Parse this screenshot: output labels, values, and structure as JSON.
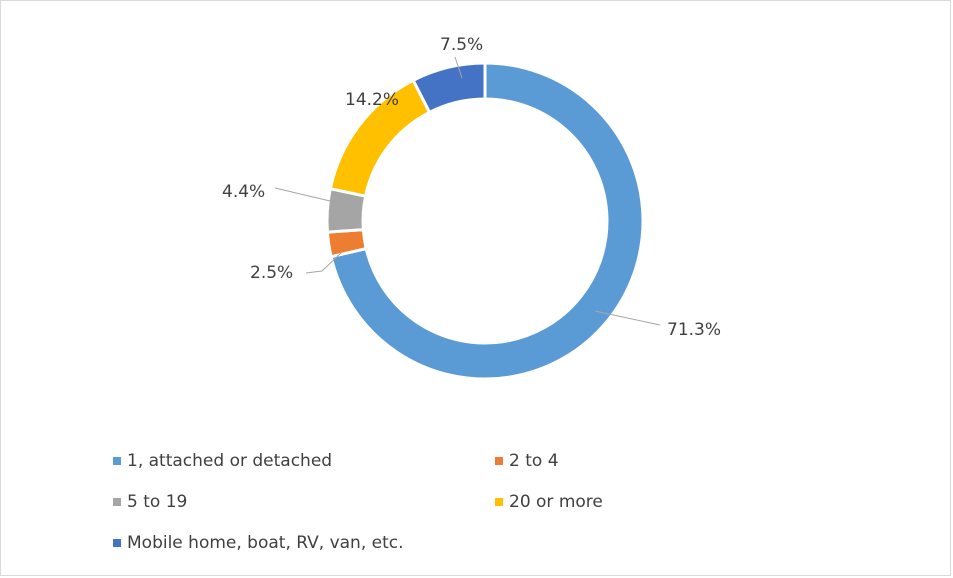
{
  "chart_data": {
    "type": "donut",
    "categories": [
      "1, attached or detached",
      "2 to 4",
      "5 to 19",
      "20 or more",
      "Mobile home, boat, RV, van, etc."
    ],
    "values": [
      71.3,
      2.5,
      4.4,
      14.2,
      7.5
    ],
    "value_labels": [
      "71.3%",
      "2.5%",
      "4.4%",
      "14.2%",
      "7.5%"
    ],
    "colors": [
      "#5b9bd5",
      "#ed7d31",
      "#a5a5a5",
      "#ffc000",
      "#4472c4"
    ],
    "legend": "bottom"
  }
}
